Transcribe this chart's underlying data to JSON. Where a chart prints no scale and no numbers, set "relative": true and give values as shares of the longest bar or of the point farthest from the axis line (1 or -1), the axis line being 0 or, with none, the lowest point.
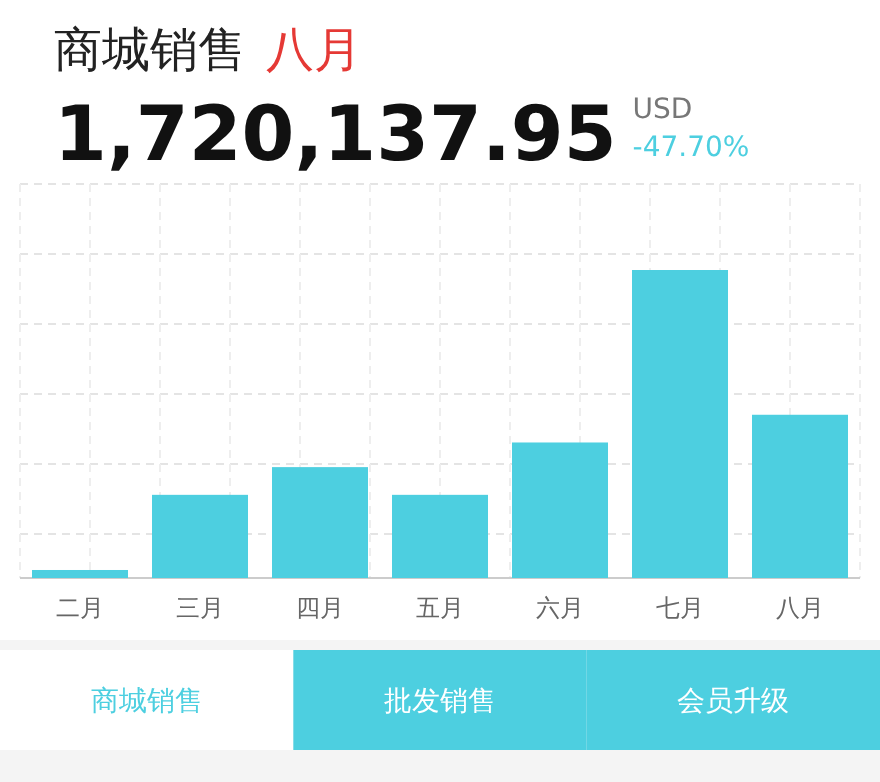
{
  "chart_data": {
    "type": "bar",
    "title": "商城销售",
    "subtitle": "八月",
    "relative": true,
    "grid": true,
    "categories": [
      "二月",
      "三月",
      "四月",
      "五月",
      "六月",
      "七月",
      "八月"
    ],
    "values": [
      0.026,
      0.27,
      0.36,
      0.27,
      0.44,
      1,
      0.53
    ],
    "color": "#4dcfe0",
    "annotations": [
      "1,720,137.95",
      "USD",
      "-47.70%",
      "商城销售",
      "批发销售",
      "会员升级"
    ]
  }
}
